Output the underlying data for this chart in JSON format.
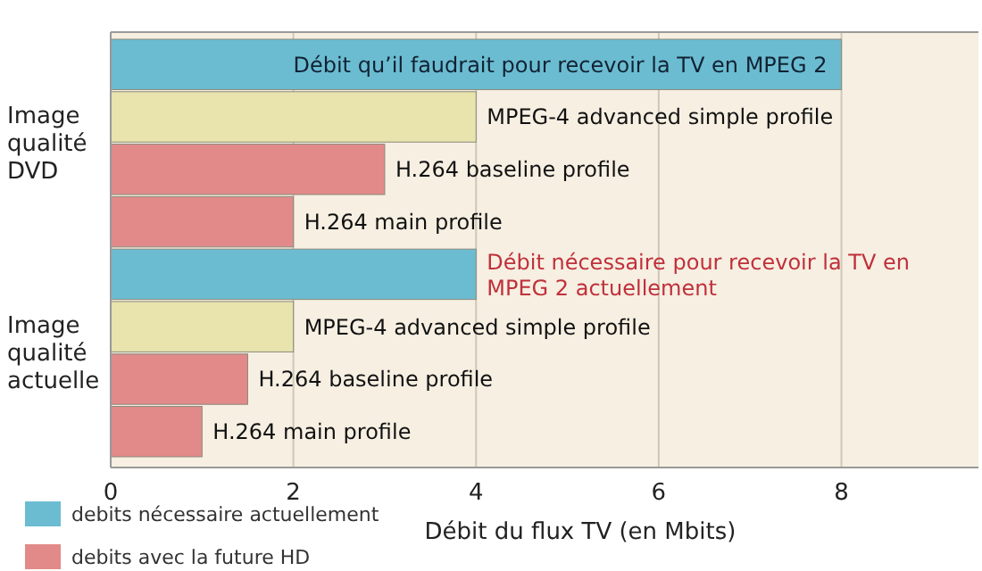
{
  "chart_data": {
    "type": "bar",
    "orientation": "horizontal",
    "xlabel": "Débit du flux TV (en Mbits)",
    "categories": [
      "Débit qu’il faudrait pour recevoir la TV en MPEG 2",
      "MPEG-4 advanced simple profile",
      "H.264 baseline profile",
      "H.264 main profile",
      "Débit nécessaire pour recevoir la TV en MPEG 2 actuellement",
      "MPEG-4 advanced simple profile",
      "H.264 baseline profile",
      "H.264 main profile"
    ],
    "series": [
      {
        "name": "debits nécessaire actuellement",
        "color": "#6bbcd1",
        "values": [
          8,
          null,
          null,
          null,
          4,
          null,
          null,
          null
        ]
      },
      {
        "color": "#e9e3ad",
        "values": [
          null,
          4,
          null,
          null,
          null,
          2,
          null,
          null
        ]
      },
      {
        "name": "debits avec la future HD",
        "color": "#e28a8a",
        "values": [
          null,
          null,
          3,
          2,
          null,
          null,
          1.5,
          1
        ]
      }
    ],
    "xlim": [
      0,
      9.5
    ],
    "xticks": [
      0,
      2,
      4,
      6,
      8
    ],
    "grid": "x",
    "legend": "bottom left",
    "annotations": [
      "Image qualité DVD",
      "Image qualité actuelle"
    ]
  }
}
